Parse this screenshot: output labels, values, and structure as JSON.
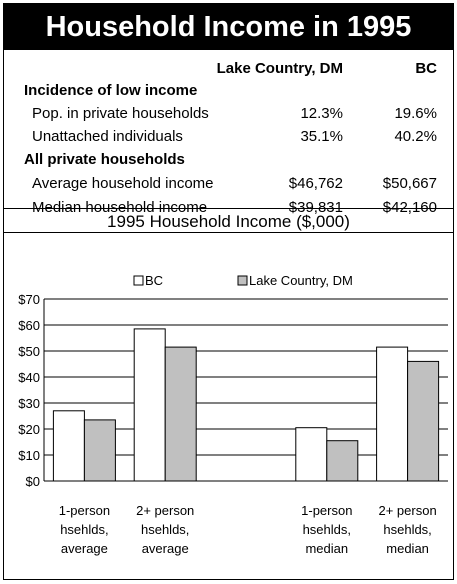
{
  "title": "Household Income in 1995",
  "table": {
    "columns": [
      "Lake Country, DM",
      "BC"
    ],
    "sections": [
      {
        "heading": "Incidence of low income",
        "rows": [
          {
            "label": "Pop. in private households",
            "lake": "12.3%",
            "bc": "19.6%"
          },
          {
            "label": "Unattached individuals",
            "lake": "35.1%",
            "bc": "40.2%"
          }
        ]
      },
      {
        "heading": "All private households",
        "rows": [
          {
            "label": "Average household income",
            "lake": "$46,762",
            "bc": "$50,667"
          },
          {
            "label": "Median household income",
            "lake": "$39,831",
            "bc": "$42,160"
          }
        ]
      }
    ]
  },
  "chart_data": {
    "type": "bar",
    "title": "1995 Household Income ($,000)",
    "categories": [
      [
        "1-person",
        "hsehlds,",
        "average"
      ],
      [
        "2+ person",
        "hsehlds,",
        "average"
      ],
      [
        "",
        "",
        ""
      ],
      [
        "1-person",
        "hsehlds,",
        "median"
      ],
      [
        "2+ person",
        "hsehlds,",
        "median"
      ]
    ],
    "series": [
      {
        "name": "BC",
        "color": "#ffffff",
        "values": [
          27,
          58.5,
          null,
          20.5,
          51.5
        ]
      },
      {
        "name": "Lake Country, DM",
        "color": "#c0c0c0",
        "values": [
          23.5,
          51.5,
          null,
          15.5,
          46
        ]
      }
    ],
    "ylim": [
      0,
      70
    ],
    "yticks": [
      "$0",
      "$10",
      "$20",
      "$30",
      "$40",
      "$50",
      "$60",
      "$70"
    ],
    "grid": true,
    "legend_position": "top"
  }
}
